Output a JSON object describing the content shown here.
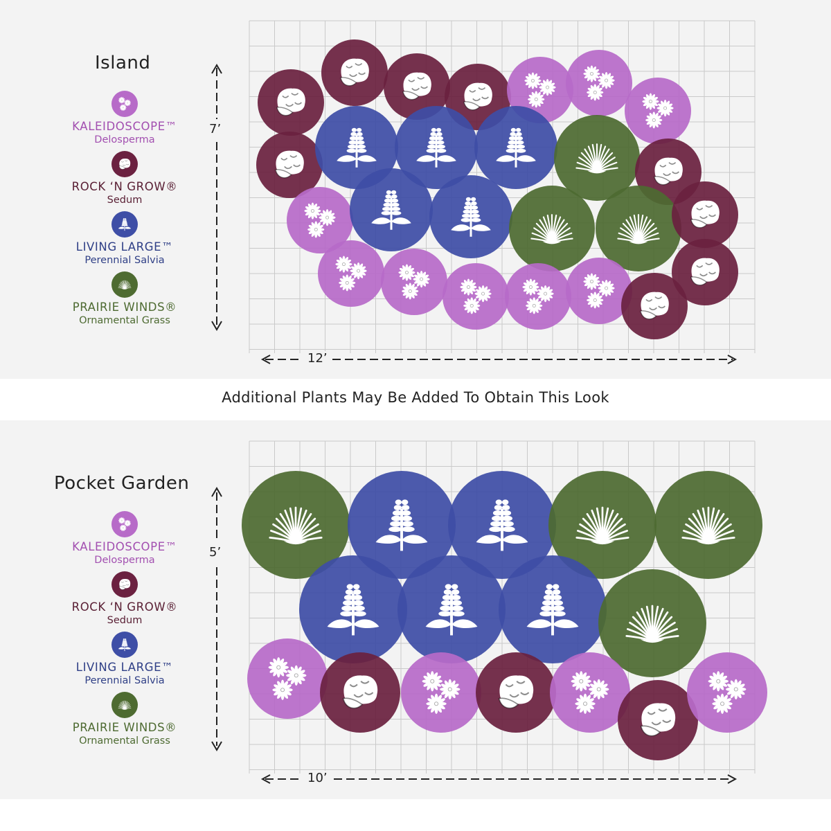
{
  "middle_note": "Additional Plants May Be Added To Obtain This Look",
  "colors": {
    "kaleidoscope": "#b76bc8",
    "rock_n_grow": "#6b2140",
    "living_large": "#3e4ea6",
    "prairie_winds": "#4e6b31",
    "background": "#f3f3f3",
    "grid": "#c9c9c9"
  },
  "island": {
    "title": "Island",
    "height_label": "7’",
    "width_label": "12’",
    "legend": [
      {
        "key": "kaleidoscope",
        "name": "KALEIDOSCOPE™",
        "sub": "Delosperma",
        "icon": "flower-cluster-icon"
      },
      {
        "key": "rock_n_grow",
        "name": "ROCK ‘N GROW®",
        "sub": "Sedum",
        "icon": "sedum-icon"
      },
      {
        "key": "living_large",
        "name": "LIVING LARGE™",
        "sub": "Perennial Salvia",
        "icon": "salvia-spike-icon"
      },
      {
        "key": "prairie_winds",
        "name": "PRAIRIE WINDS®",
        "sub": "Ornamental Grass",
        "icon": "grass-icon"
      }
    ]
  },
  "pocket_garden": {
    "title": "Pocket Garden",
    "height_label": "5’",
    "width_label": "10’",
    "legend": [
      {
        "key": "kaleidoscope",
        "name": "KALEIDOSCOPE™",
        "sub": "Delosperma",
        "icon": "flower-cluster-icon"
      },
      {
        "key": "rock_n_grow",
        "name": "ROCK ‘N GROW®",
        "sub": "Sedum",
        "icon": "sedum-icon"
      },
      {
        "key": "living_large",
        "name": "LIVING LARGE™",
        "sub": "Perennial Salvia",
        "icon": "salvia-spike-icon"
      },
      {
        "key": "prairie_winds",
        "name": "PRAIRIE WINDS®",
        "sub": "Ornamental Grass",
        "icon": "grass-icon"
      }
    ]
  }
}
